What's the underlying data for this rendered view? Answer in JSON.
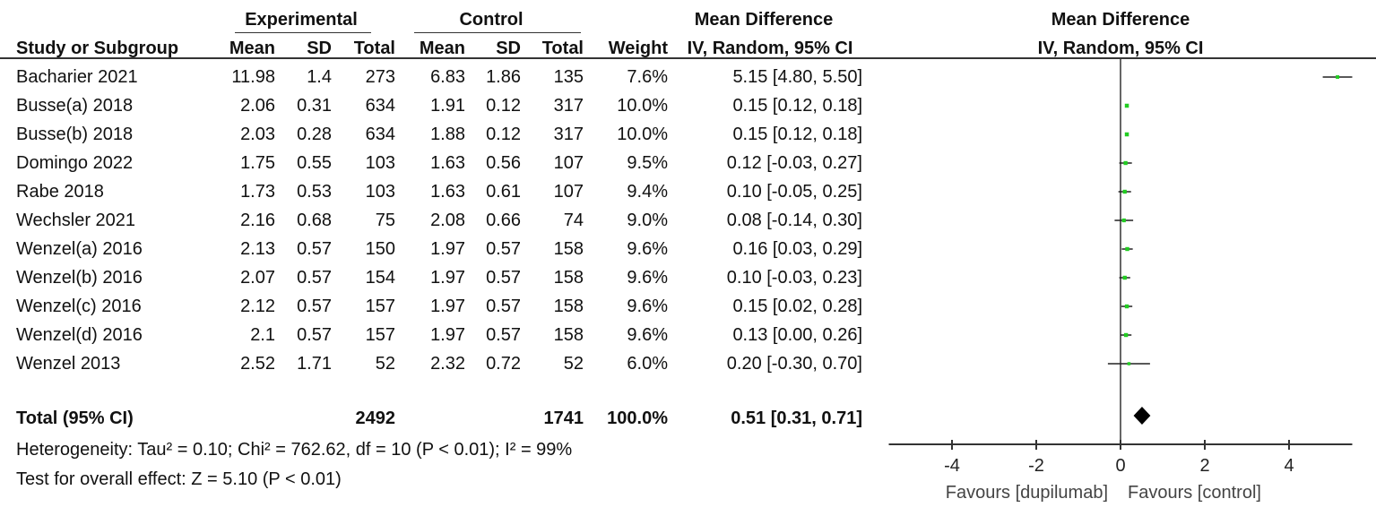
{
  "headers": {
    "experimental": "Experimental",
    "control": "Control",
    "md_group": "Mean Difference",
    "plot_title": "Mean Difference",
    "study": "Study or Subgroup",
    "exp_mean": "Mean",
    "exp_sd": "SD",
    "exp_total": "Total",
    "ctl_mean": "Mean",
    "ctl_sd": "SD",
    "ctl_total": "Total",
    "weight": "Weight",
    "md_method": "IV, Random, 95% CI",
    "plot_method": "IV, Random, 95% CI"
  },
  "studies": [
    {
      "name": "Bacharier 2021",
      "exp_mean": "11.98",
      "exp_sd": "1.4",
      "exp_total": "273",
      "ctl_mean": "6.83",
      "ctl_sd": "1.86",
      "ctl_total": "135",
      "weight": "7.6%",
      "ci_text": "5.15 [4.80, 5.50]"
    },
    {
      "name": "Busse(a) 2018",
      "exp_mean": "2.06",
      "exp_sd": "0.31",
      "exp_total": "634",
      "ctl_mean": "1.91",
      "ctl_sd": "0.12",
      "ctl_total": "317",
      "weight": "10.0%",
      "ci_text": "0.15 [0.12, 0.18]"
    },
    {
      "name": "Busse(b) 2018",
      "exp_mean": "2.03",
      "exp_sd": "0.28",
      "exp_total": "634",
      "ctl_mean": "1.88",
      "ctl_sd": "0.12",
      "ctl_total": "317",
      "weight": "10.0%",
      "ci_text": "0.15 [0.12, 0.18]"
    },
    {
      "name": "Domingo 2022",
      "exp_mean": "1.75",
      "exp_sd": "0.55",
      "exp_total": "103",
      "ctl_mean": "1.63",
      "ctl_sd": "0.56",
      "ctl_total": "107",
      "weight": "9.5%",
      "ci_text": "0.12 [-0.03, 0.27]"
    },
    {
      "name": "Rabe 2018",
      "exp_mean": "1.73",
      "exp_sd": "0.53",
      "exp_total": "103",
      "ctl_mean": "1.63",
      "ctl_sd": "0.61",
      "ctl_total": "107",
      "weight": "9.4%",
      "ci_text": "0.10 [-0.05, 0.25]"
    },
    {
      "name": "Wechsler 2021",
      "exp_mean": "2.16",
      "exp_sd": "0.68",
      "exp_total": "75",
      "ctl_mean": "2.08",
      "ctl_sd": "0.66",
      "ctl_total": "74",
      "weight": "9.0%",
      "ci_text": "0.08 [-0.14, 0.30]"
    },
    {
      "name": "Wenzel(a) 2016",
      "exp_mean": "2.13",
      "exp_sd": "0.57",
      "exp_total": "150",
      "ctl_mean": "1.97",
      "ctl_sd": "0.57",
      "ctl_total": "158",
      "weight": "9.6%",
      "ci_text": "0.16 [0.03, 0.29]"
    },
    {
      "name": "Wenzel(b) 2016",
      "exp_mean": "2.07",
      "exp_sd": "0.57",
      "exp_total": "154",
      "ctl_mean": "1.97",
      "ctl_sd": "0.57",
      "ctl_total": "158",
      "weight": "9.6%",
      "ci_text": "0.10 [-0.03, 0.23]"
    },
    {
      "name": "Wenzel(c) 2016",
      "exp_mean": "2.12",
      "exp_sd": "0.57",
      "exp_total": "157",
      "ctl_mean": "1.97",
      "ctl_sd": "0.57",
      "ctl_total": "158",
      "weight": "9.6%",
      "ci_text": "0.15 [0.02, 0.28]"
    },
    {
      "name": "Wenzel(d) 2016",
      "exp_mean": "2.1",
      "exp_sd": "0.57",
      "exp_total": "157",
      "ctl_mean": "1.97",
      "ctl_sd": "0.57",
      "ctl_total": "158",
      "weight": "9.6%",
      "ci_text": "0.13 [0.00, 0.26]"
    },
    {
      "name": "Wenzel 2013",
      "exp_mean": "2.52",
      "exp_sd": "1.71",
      "exp_total": "52",
      "ctl_mean": "2.32",
      "ctl_sd": "0.72",
      "ctl_total": "52",
      "weight": "6.0%",
      "ci_text": "0.20 [-0.30, 0.70]"
    }
  ],
  "total": {
    "label": "Total (95% CI)",
    "exp_total": "2492",
    "ctl_total": "1741",
    "weight": "100.0%",
    "ci_text": "0.51 [0.31, 0.71]"
  },
  "heterogeneity": "Heterogeneity: Tau² = 0.10; Chi² = 762.62, df = 10 (P < 0.01); I² = 99%",
  "overall_effect": "Test for overall effect: Z = 5.10 (P < 0.01)",
  "colors": {
    "point": "#22cc22",
    "diamond": "#000000",
    "line": "#222222"
  },
  "chart_data": {
    "type": "forest",
    "xlim": [
      -5.5,
      5.5
    ],
    "ticks": [
      -4,
      -2,
      0,
      2,
      4
    ],
    "tick_labels": [
      "-4",
      "-2",
      "0",
      "2",
      "4"
    ],
    "favours_left": "Favours [dupilumab]",
    "favours_right": "Favours [control]",
    "points": [
      {
        "md": 5.15,
        "lo": 4.8,
        "hi": 5.5,
        "weight": 7.6
      },
      {
        "md": 0.15,
        "lo": 0.12,
        "hi": 0.18,
        "weight": 10.0
      },
      {
        "md": 0.15,
        "lo": 0.12,
        "hi": 0.18,
        "weight": 10.0
      },
      {
        "md": 0.12,
        "lo": -0.03,
        "hi": 0.27,
        "weight": 9.5
      },
      {
        "md": 0.1,
        "lo": -0.05,
        "hi": 0.25,
        "weight": 9.4
      },
      {
        "md": 0.08,
        "lo": -0.14,
        "hi": 0.3,
        "weight": 9.0
      },
      {
        "md": 0.16,
        "lo": 0.03,
        "hi": 0.29,
        "weight": 9.6
      },
      {
        "md": 0.1,
        "lo": -0.03,
        "hi": 0.23,
        "weight": 9.6
      },
      {
        "md": 0.15,
        "lo": 0.02,
        "hi": 0.28,
        "weight": 9.6
      },
      {
        "md": 0.13,
        "lo": 0.0,
        "hi": 0.26,
        "weight": 9.6
      },
      {
        "md": 0.2,
        "lo": -0.3,
        "hi": 0.7,
        "weight": 6.0
      }
    ],
    "pooled": {
      "md": 0.51,
      "lo": 0.31,
      "hi": 0.71
    }
  }
}
